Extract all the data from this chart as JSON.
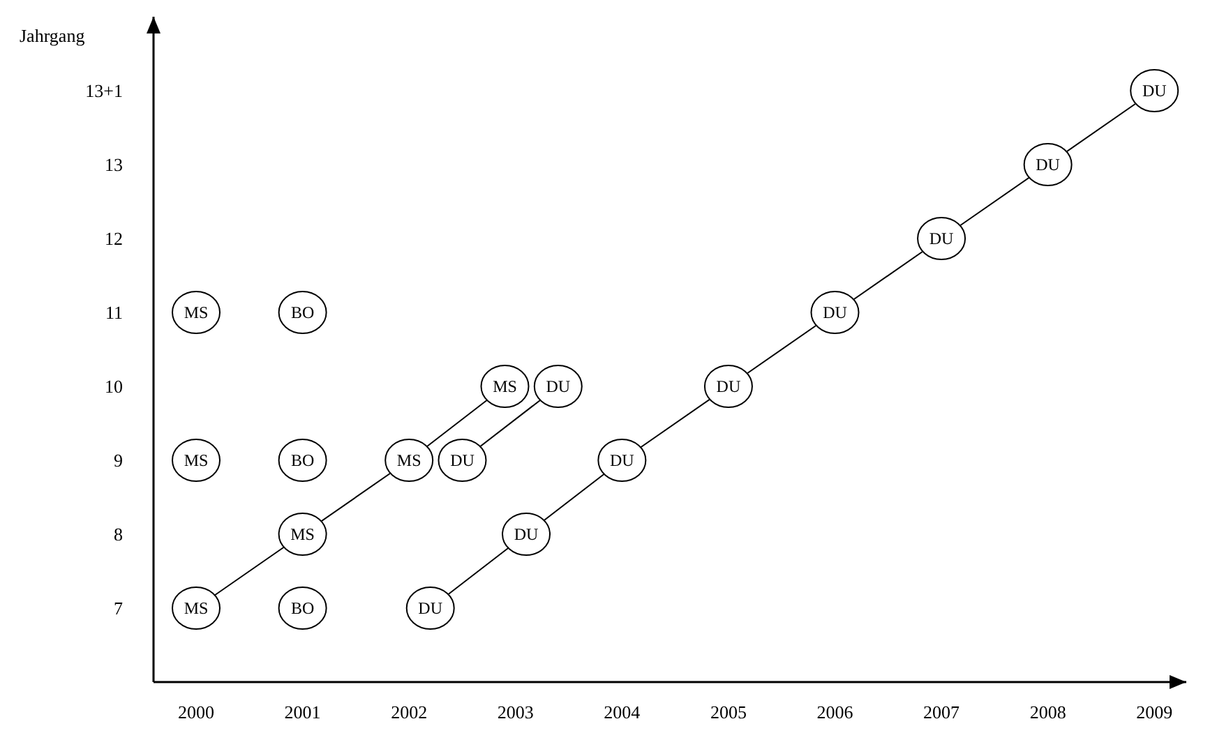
{
  "chart_data": {
    "type": "line",
    "ylabel": "Jahrgang",
    "xlim": [
      1999.6,
      2009.3
    ],
    "ylim": [
      6,
      15
    ],
    "xticks": [
      2000,
      2001,
      2002,
      2003,
      2004,
      2005,
      2006,
      2007,
      2008,
      2009
    ],
    "yticks": [
      7,
      8,
      9,
      10,
      11,
      12,
      13,
      {
        "value": 14,
        "label": "13+1"
      }
    ],
    "grid": false,
    "marker": "circle",
    "line_style": "solid",
    "series": [
      {
        "name": "MS",
        "type": "line",
        "color": "#000000",
        "x": [
          2000,
          2001,
          2002,
          2002.9
        ],
        "values": [
          7,
          8,
          9,
          10
        ]
      },
      {
        "name": "MS",
        "type": "scatter",
        "color": "#000000",
        "x": [
          2000,
          2000
        ],
        "values": [
          9,
          11
        ]
      },
      {
        "name": "BO",
        "type": "scatter",
        "color": "#000000",
        "x": [
          2001,
          2001,
          2001
        ],
        "values": [
          7,
          9,
          11
        ]
      },
      {
        "name": "DU",
        "type": "line",
        "color": "#000000",
        "x": [
          2002.5,
          2003.4
        ],
        "values": [
          9,
          10
        ]
      },
      {
        "name": "DU",
        "type": "line",
        "color": "#000000",
        "x": [
          2002.2,
          2003.1,
          2004,
          2005,
          2006,
          2007,
          2008,
          2009
        ],
        "values": [
          7,
          8,
          9,
          10,
          11,
          12,
          13,
          14
        ]
      }
    ]
  }
}
